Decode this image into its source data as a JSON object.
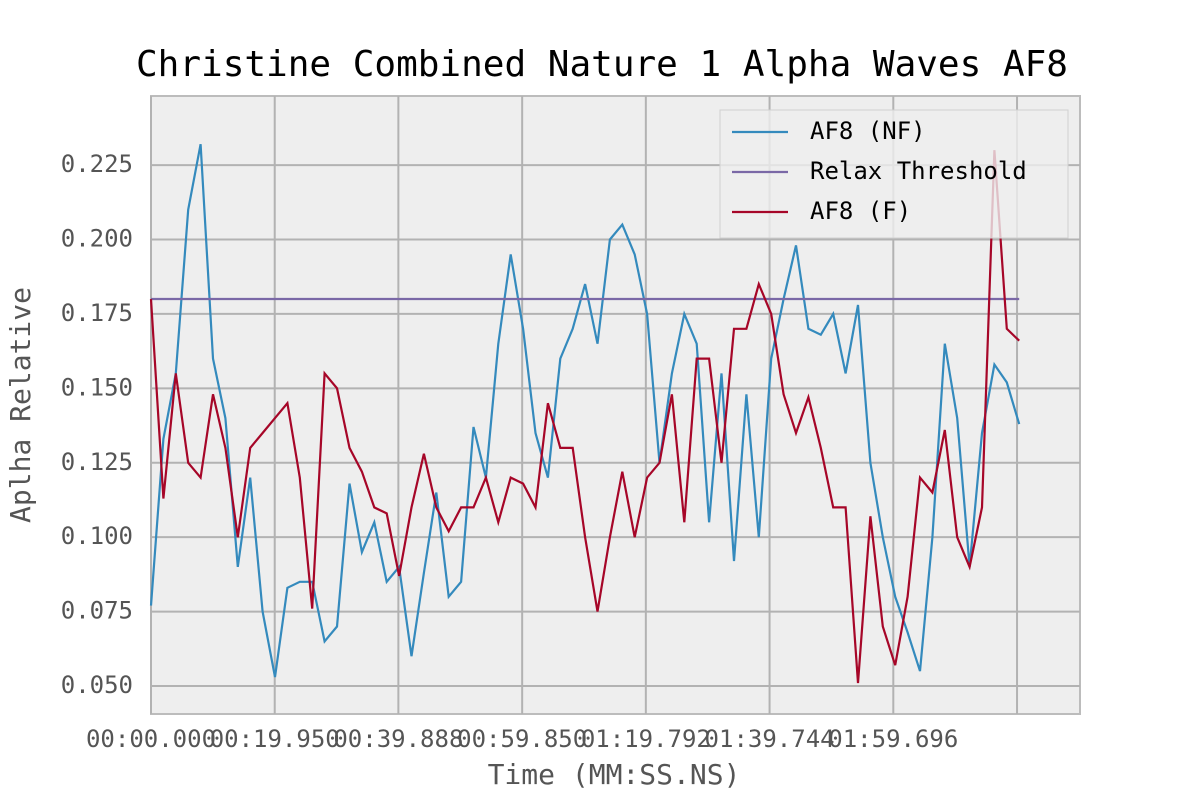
{
  "chart_data": {
    "type": "line",
    "title": "Christine Combined Nature 1 Alpha Waves AF8",
    "x_label": "Time (MM:SS.NS)",
    "y_label": "Aplha Relative",
    "x": [
      0,
      2,
      4,
      6,
      8,
      10,
      12,
      14,
      16,
      18,
      20,
      22,
      24,
      26,
      28,
      30,
      32,
      34,
      36,
      38,
      40,
      42,
      44,
      46,
      48,
      50,
      52,
      54,
      56,
      58,
      60,
      62,
      64,
      66,
      68,
      70,
      72,
      74,
      76,
      78,
      80,
      82,
      84,
      86,
      88,
      90,
      92,
      94,
      96,
      98,
      100,
      102,
      104,
      106,
      108,
      110,
      112,
      114,
      116,
      118,
      120,
      122,
      124,
      126,
      128,
      130,
      132,
      134,
      136,
      138,
      140
    ],
    "series": [
      {
        "name": "AF8 (NF)",
        "color": "#348abd",
        "values": [
          0.077,
          0.133,
          0.155,
          0.21,
          0.232,
          0.16,
          0.14,
          0.09,
          0.12,
          0.075,
          0.053,
          0.083,
          0.085,
          0.085,
          0.065,
          0.07,
          0.118,
          0.095,
          0.105,
          0.085,
          0.09,
          0.06,
          0.088,
          0.115,
          0.08,
          0.085,
          0.137,
          0.12,
          0.165,
          0.195,
          0.17,
          0.135,
          0.12,
          0.16,
          0.17,
          0.185,
          0.165,
          0.2,
          0.205,
          0.195,
          0.175,
          0.125,
          0.155,
          0.175,
          0.165,
          0.105,
          0.155,
          0.092,
          0.148,
          0.1,
          0.16,
          0.18,
          0.198,
          0.17,
          0.168,
          0.175,
          0.155,
          0.178,
          0.125,
          0.1,
          0.08,
          0.068,
          0.055,
          0.1,
          0.165,
          0.14,
          0.09,
          0.135,
          0.158,
          0.152,
          0.138
        ]
      },
      {
        "name": "Relax Threshold",
        "color": "#7a68a6",
        "values": [
          0.18,
          0.18,
          0.18,
          0.18,
          0.18,
          0.18,
          0.18,
          0.18,
          0.18,
          0.18,
          0.18,
          0.18,
          0.18,
          0.18,
          0.18,
          0.18,
          0.18,
          0.18,
          0.18,
          0.18,
          0.18,
          0.18,
          0.18,
          0.18,
          0.18,
          0.18,
          0.18,
          0.18,
          0.18,
          0.18,
          0.18,
          0.18,
          0.18,
          0.18,
          0.18,
          0.18,
          0.18,
          0.18,
          0.18,
          0.18,
          0.18,
          0.18,
          0.18,
          0.18,
          0.18,
          0.18,
          0.18,
          0.18,
          0.18,
          0.18,
          0.18,
          0.18,
          0.18,
          0.18,
          0.18,
          0.18,
          0.18,
          0.18,
          0.18,
          0.18,
          0.18,
          0.18,
          0.18,
          0.18,
          0.18,
          0.18,
          0.18,
          0.18,
          0.18,
          0.18,
          0.18
        ]
      },
      {
        "name": "AF8 (F)",
        "color": "#a60628",
        "values": [
          0.18,
          0.113,
          0.155,
          0.125,
          0.12,
          0.148,
          0.13,
          0.1,
          0.13,
          0.135,
          0.14,
          0.145,
          0.12,
          0.076,
          0.155,
          0.15,
          0.13,
          0.122,
          0.11,
          0.108,
          0.087,
          0.11,
          0.128,
          0.11,
          0.102,
          0.11,
          0.11,
          0.12,
          0.105,
          0.12,
          0.118,
          0.11,
          0.145,
          0.13,
          0.13,
          0.1,
          0.075,
          0.1,
          0.122,
          0.1,
          0.12,
          0.125,
          0.148,
          0.105,
          0.16,
          0.16,
          0.125,
          0.17,
          0.17,
          0.185,
          0.175,
          0.148,
          0.135,
          0.147,
          0.13,
          0.11,
          0.11,
          0.051,
          0.107,
          0.07,
          0.057,
          0.08,
          0.12,
          0.115,
          0.136,
          0.1,
          0.09,
          0.11,
          0.23,
          0.17,
          0.166
        ]
      }
    ],
    "xlim": [
      0,
      149.8
    ],
    "ylim": [
      0.0406,
      0.2482
    ],
    "xticks": [
      {
        "value": 0,
        "label": "00:00.000"
      },
      {
        "value": 19.95,
        "label": "00:19.950"
      },
      {
        "value": 39.888,
        "label": "00:39.888"
      },
      {
        "value": 59.85,
        "label": "00:59.850"
      },
      {
        "value": 79.792,
        "label": "01:19.792"
      },
      {
        "value": 99.744,
        "label": "01:39.744"
      },
      {
        "value": 119.696,
        "label": "01:59.696"
      },
      {
        "value": 139.648,
        "label": ""
      }
    ],
    "yticks": [
      {
        "value": 0.05,
        "label": "0.050"
      },
      {
        "value": 0.075,
        "label": "0.075"
      },
      {
        "value": 0.1,
        "label": "0.100"
      },
      {
        "value": 0.125,
        "label": "0.125"
      },
      {
        "value": 0.15,
        "label": "0.150"
      },
      {
        "value": 0.175,
        "label": "0.175"
      },
      {
        "value": 0.2,
        "label": "0.200"
      },
      {
        "value": 0.225,
        "label": "0.225"
      }
    ],
    "grid": true,
    "legend": "upper right"
  }
}
